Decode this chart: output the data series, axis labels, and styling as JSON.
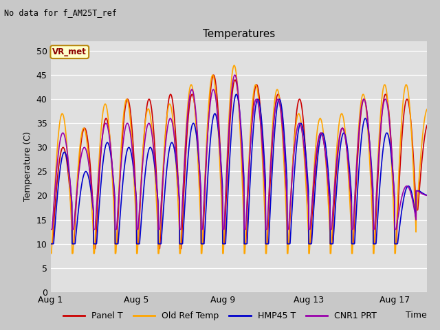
{
  "title": "Temperatures",
  "subtitle": "No data for f_AM25T_ref",
  "ylabel": "Temperature (C)",
  "xlabel": "Time",
  "annotation": "VR_met",
  "ylim": [
    0,
    52
  ],
  "yticks": [
    0,
    5,
    10,
    15,
    20,
    25,
    30,
    35,
    40,
    45,
    50
  ],
  "xtick_labels": [
    "Aug 1",
    "Aug 5",
    "Aug 9",
    "Aug 13",
    "Aug 17"
  ],
  "fig_bg_color": "#c8c8c8",
  "plot_bg_color": "#e0e0e0",
  "line_colors": {
    "Panel T": "#cc0000",
    "Old Ref Temp": "#ffa500",
    "HMP45 T": "#0000cc",
    "CNR1 PRT": "#9900aa"
  },
  "legend_entries": [
    "Panel T",
    "Old Ref Temp",
    "HMP45 T",
    "CNR1 PRT"
  ],
  "n_days": 18,
  "pts_per_day": 96,
  "cycle_maxs_panel": [
    30,
    34,
    36,
    40,
    40,
    41,
    41,
    45,
    44,
    43,
    41,
    40,
    33,
    34,
    40,
    41,
    40,
    35
  ],
  "cycle_maxs_orange": [
    37,
    34,
    39,
    40,
    38,
    39,
    43,
    45,
    47,
    43,
    42,
    37,
    36,
    37,
    41,
    43,
    43,
    38
  ],
  "cycle_maxs_blue": [
    29,
    25,
    31,
    30,
    30,
    31,
    35,
    37,
    41,
    40,
    40,
    35,
    33,
    33,
    36,
    33,
    22,
    20
  ],
  "cycle_maxs_purple": [
    33,
    30,
    35,
    35,
    35,
    36,
    42,
    42,
    45,
    40,
    40,
    35,
    33,
    34,
    40,
    40,
    22,
    20
  ],
  "cycle_mins_panel": [
    10,
    10,
    9,
    10,
    10,
    9,
    9,
    10,
    10,
    10,
    10,
    10,
    10,
    10,
    10,
    10,
    10,
    17
  ],
  "cycle_mins_orange": [
    8,
    8,
    8,
    8,
    8,
    8,
    8,
    8,
    8,
    8,
    8,
    8,
    8,
    8,
    8,
    8,
    8,
    17
  ],
  "cycle_mins_blue": [
    10,
    10,
    10,
    10,
    10,
    10,
    10,
    10,
    10,
    10,
    10,
    10,
    10,
    10,
    10,
    10,
    10,
    21
  ],
  "cycle_mins_purple": [
    13,
    13,
    13,
    13,
    13,
    13,
    13,
    13,
    13,
    13,
    13,
    13,
    13,
    13,
    13,
    13,
    13,
    21
  ]
}
